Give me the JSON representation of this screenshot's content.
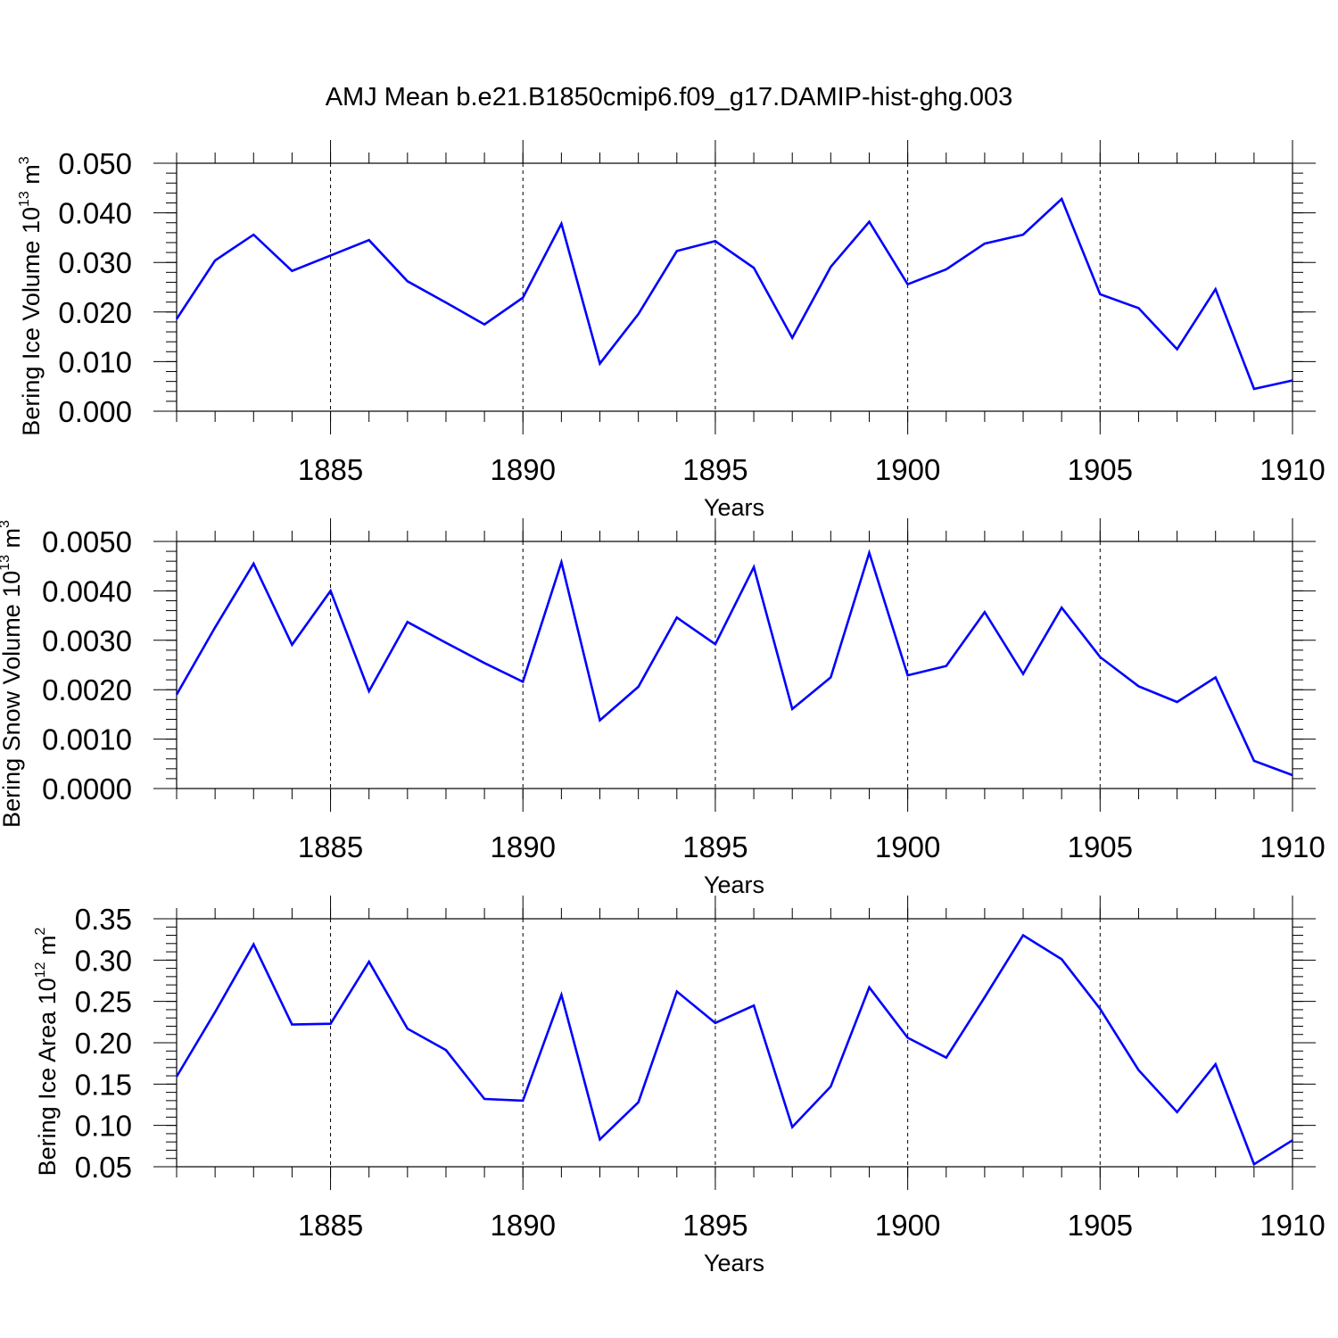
{
  "title": "AMJ Mean b.e21.B1850cmip6.f09_g17.DAMIP-hist-ghg.003",
  "chart_data": [
    {
      "type": "line",
      "xlabel": "Years",
      "ylabel": {
        "main": "Bering Ice Volume 10",
        "exp": "13",
        "unit": " m",
        "unit_exp": "3"
      },
      "xlim": [
        1881,
        1910
      ],
      "ylim": [
        0.0,
        0.05
      ],
      "x_ticks": [
        "1885",
        "1890",
        "1895",
        "1900",
        "1905",
        "1910"
      ],
      "y_ticks": [
        "0.000",
        "0.010",
        "0.020",
        "0.030",
        "0.040",
        "0.050"
      ],
      "grid": "dashed vertical lines at labeled x ticks",
      "color": "#0000ff",
      "series": [
        {
          "x": [
            1881,
            1882,
            1883,
            1884,
            1885,
            1886,
            1887,
            1888,
            1889,
            1890,
            1891,
            1892,
            1893,
            1894,
            1895,
            1896,
            1897,
            1898,
            1899,
            1900,
            1901,
            1902,
            1903,
            1904,
            1905,
            1906,
            1907,
            1908,
            1909,
            1910
          ],
          "values": [
            0.0186,
            0.0304,
            0.0356,
            0.0283,
            0.0314,
            0.0345,
            0.0262,
            0.0219,
            0.0175,
            0.0229,
            0.0378,
            0.0096,
            0.0196,
            0.0323,
            0.0343,
            0.0289,
            0.0148,
            0.0291,
            0.0382,
            0.0256,
            0.0286,
            0.0338,
            0.0356,
            0.0428,
            0.0236,
            0.0208,
            0.0125,
            0.0246,
            0.0045,
            0.0062
          ]
        }
      ]
    },
    {
      "type": "line",
      "xlabel": "Years",
      "ylabel": {
        "main": "Bering Snow Volume 10",
        "exp": "13",
        "unit": " m",
        "unit_exp": "3"
      },
      "xlim": [
        1881,
        1910
      ],
      "ylim": [
        0.0,
        0.005
      ],
      "x_ticks": [
        "1885",
        "1890",
        "1895",
        "1900",
        "1905",
        "1910"
      ],
      "y_ticks": [
        "0.0000",
        "0.0010",
        "0.0020",
        "0.0030",
        "0.0040",
        "0.0050"
      ],
      "grid": "dashed vertical lines at labeled x ticks",
      "color": "#0000ff",
      "series": [
        {
          "x": [
            1881,
            1882,
            1883,
            1884,
            1885,
            1886,
            1887,
            1888,
            1889,
            1890,
            1891,
            1892,
            1893,
            1894,
            1895,
            1896,
            1897,
            1898,
            1899,
            1900,
            1901,
            1902,
            1903,
            1904,
            1905,
            1906,
            1907,
            1908,
            1909,
            1910
          ],
          "values": [
            0.0019,
            0.00326,
            0.00455,
            0.00291,
            0.004,
            0.00197,
            0.00337,
            0.00295,
            0.00254,
            0.00216,
            0.00458,
            0.00138,
            0.00206,
            0.00346,
            0.00292,
            0.00448,
            0.00161,
            0.00225,
            0.00477,
            0.00229,
            0.00248,
            0.00357,
            0.00232,
            0.00366,
            0.00266,
            0.00207,
            0.00175,
            0.00225,
            0.00056,
            0.00027
          ]
        }
      ]
    },
    {
      "type": "line",
      "xlabel": "Years",
      "ylabel": {
        "main": "Bering Ice Area 10",
        "exp": "12",
        "unit": " m",
        "unit_exp": "2"
      },
      "xlim": [
        1881,
        1910
      ],
      "ylim": [
        0.05,
        0.35
      ],
      "x_ticks": [
        "1885",
        "1890",
        "1895",
        "1900",
        "1905",
        "1910"
      ],
      "y_ticks": [
        "0.05",
        "0.10",
        "0.15",
        "0.20",
        "0.25",
        "0.30",
        "0.35"
      ],
      "grid": "dashed vertical lines at labeled x ticks",
      "color": "#0000ff",
      "series": [
        {
          "x": [
            1881,
            1882,
            1883,
            1884,
            1885,
            1886,
            1887,
            1888,
            1889,
            1890,
            1891,
            1892,
            1893,
            1894,
            1895,
            1896,
            1897,
            1898,
            1899,
            1900,
            1901,
            1902,
            1903,
            1904,
            1905,
            1906,
            1907,
            1908,
            1909,
            1910
          ],
          "values": [
            0.159,
            0.237,
            0.319,
            0.222,
            0.223,
            0.298,
            0.217,
            0.191,
            0.132,
            0.13,
            0.258,
            0.083,
            0.128,
            0.262,
            0.224,
            0.245,
            0.098,
            0.147,
            0.267,
            0.206,
            0.182,
            0.255,
            0.33,
            0.301,
            0.241,
            0.167,
            0.116,
            0.174,
            0.053,
            0.082
          ]
        }
      ]
    }
  ]
}
